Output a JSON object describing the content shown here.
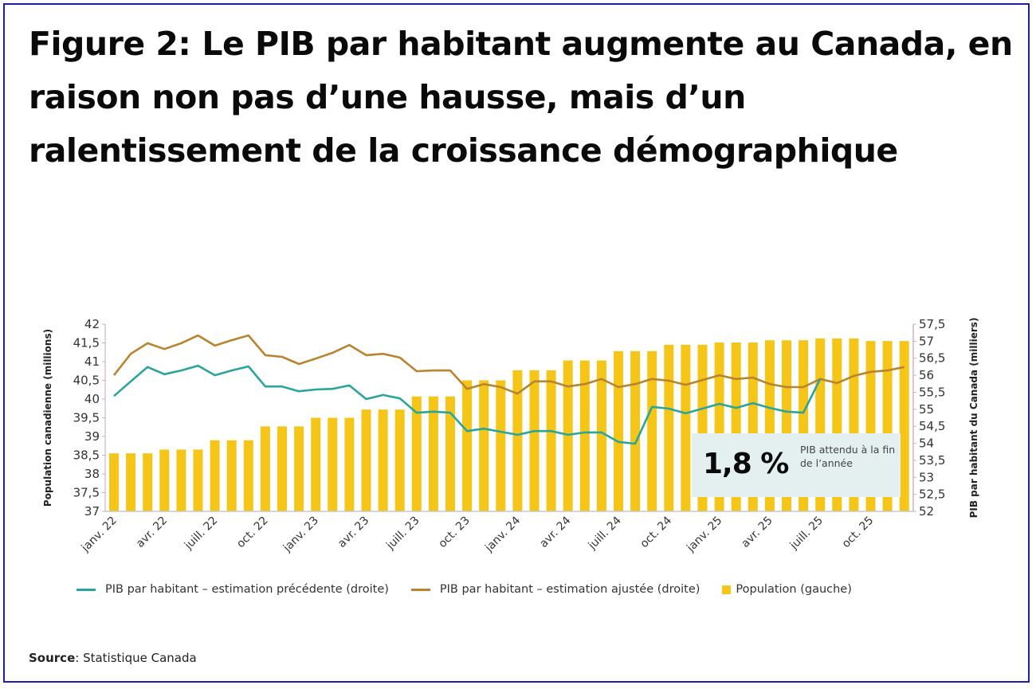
{
  "figure": {
    "prefix": "Figure 2:",
    "title": "Le PIB par habitant augmente au Canada, en raison non pas d’une hausse, mais d’un ralentissement de la croissance démographique",
    "source_label": "Source",
    "source_text": ": Statistique Canada"
  },
  "callout": {
    "value": "1,8 %",
    "text": "PIB attendu à la fin de l’année"
  },
  "colors": {
    "border": "#1f1fa3",
    "bars": "#f5c518",
    "teal": "#2aa59b",
    "brown": "#b8842f",
    "callout_bg": "#e3f0ef"
  },
  "chart_data": {
    "type": "bar+line",
    "title": "Le PIB par habitant augmente au Canada, en raison non pas d’une hausse, mais d’un ralentissement de la croissance démographique",
    "x_tick_labels": [
      "janv. 22",
      "avr. 22",
      "juill. 22",
      "oct. 22",
      "janv. 23",
      "avr. 23",
      "juill. 23",
      "oct. 23",
      "janv. 24",
      "avr. 24",
      "juill. 24",
      "oct. 24",
      "janv. 25",
      "avr. 25",
      "juill. 25",
      "oct. 25"
    ],
    "x_tick_every_months": 3,
    "months_count": 48,
    "y_left": {
      "label": "Population canadienne (millions)",
      "range": [
        37,
        42
      ],
      "ticks": [
        "37",
        "37,5",
        "38",
        "38,5",
        "39",
        "39,5",
        "40",
        "40,5",
        "41",
        "41,5",
        "42"
      ]
    },
    "y_right": {
      "label": "PIB par habitant du Canada (milliers)",
      "range": [
        52,
        57.5
      ],
      "ticks": [
        "52",
        "52,5",
        "53",
        "53,5",
        "54",
        "54,5",
        "55",
        "55,5",
        "56",
        "56,5",
        "57",
        "57,5"
      ]
    },
    "legend_position": "bottom",
    "series": [
      {
        "name": "PIB par habitant – estimation précédente (droite)",
        "type": "line",
        "axis": "right",
        "color": "#2aa59b",
        "values": [
          55.39,
          55.82,
          56.24,
          56.03,
          56.14,
          56.28,
          56.0,
          56.14,
          56.26,
          55.67,
          55.67,
          55.53,
          55.58,
          55.6,
          55.7,
          55.3,
          55.42,
          55.32,
          54.9,
          54.93,
          54.9,
          54.36,
          54.43,
          54.34,
          54.25,
          54.36,
          54.36,
          54.25,
          54.32,
          54.32,
          54.04,
          53.99,
          55.07,
          55.02,
          54.88,
          55.02,
          55.16,
          55.04,
          55.18,
          55.04,
          54.93,
          54.9,
          55.89
        ]
      },
      {
        "name": "PIB par habitant – estimation ajustée (droite)",
        "type": "line",
        "axis": "right",
        "color": "#b8842f",
        "values": [
          56.0,
          56.63,
          56.94,
          56.77,
          56.94,
          57.17,
          56.87,
          57.03,
          57.17,
          56.59,
          56.54,
          56.33,
          56.49,
          56.66,
          56.89,
          56.59,
          56.63,
          56.52,
          56.12,
          56.14,
          56.14,
          55.6,
          55.74,
          55.65,
          55.46,
          55.82,
          55.82,
          55.67,
          55.74,
          55.89,
          55.65,
          55.74,
          55.89,
          55.84,
          55.72,
          55.86,
          56.0,
          55.89,
          55.93,
          55.74,
          55.65,
          55.65,
          55.89,
          55.77,
          55.98,
          56.1,
          56.14,
          56.24
        ]
      },
      {
        "name": "Population (gauche)",
        "type": "bar",
        "axis": "left",
        "color": "#f5c518",
        "values": [
          38.55,
          38.55,
          38.55,
          38.65,
          38.65,
          38.65,
          38.9,
          38.9,
          38.9,
          39.27,
          39.27,
          39.27,
          39.5,
          39.5,
          39.5,
          39.72,
          39.72,
          39.72,
          40.07,
          40.07,
          40.07,
          40.5,
          40.5,
          40.5,
          40.77,
          40.77,
          40.77,
          41.03,
          41.03,
          41.03,
          41.28,
          41.28,
          41.28,
          41.45,
          41.45,
          41.45,
          41.51,
          41.51,
          41.51,
          41.57,
          41.57,
          41.57,
          41.62,
          41.62,
          41.62,
          41.55,
          41.55,
          41.55
        ]
      }
    ],
    "annotation": {
      "value": "1,8 %",
      "text": "PIB attendu à la fin de l’année"
    }
  }
}
